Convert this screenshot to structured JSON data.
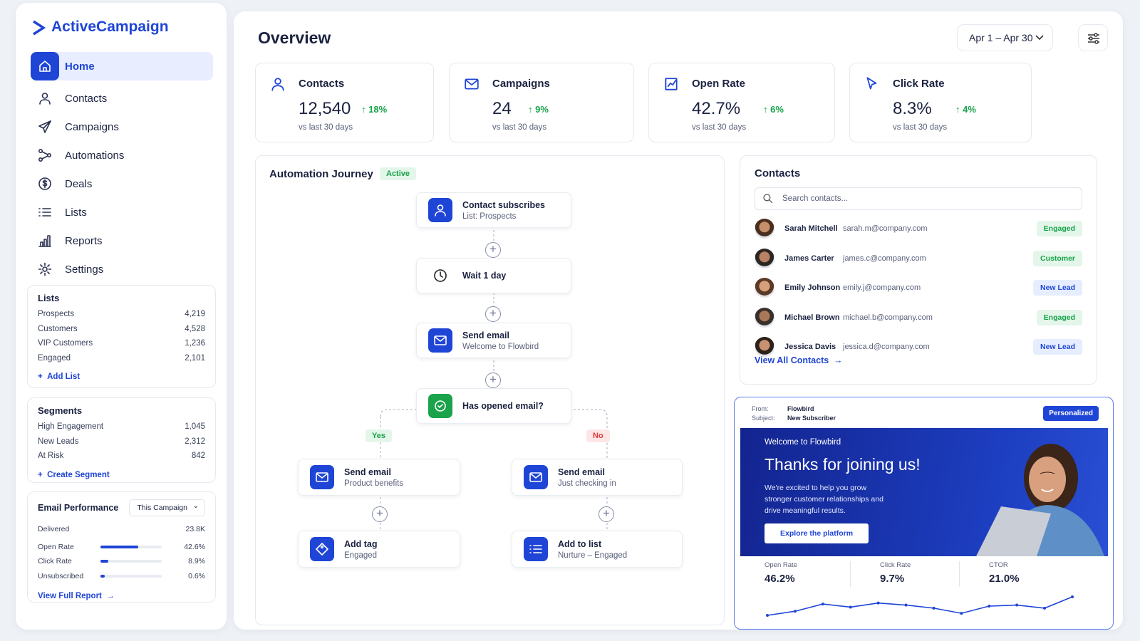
{
  "sidebar": {
    "brand": "ActiveCampaign",
    "nav": [
      "Home",
      "Contacts",
      "Campaigns",
      "Automations",
      "Deals",
      "Lists",
      "Reports",
      "Settings"
    ],
    "lists": {
      "title": "Lists",
      "items": [
        {
          "name": "Prospects",
          "count": "4,219"
        },
        {
          "name": "Customers",
          "count": "4,528"
        },
        {
          "name": "VIP Customers",
          "count": "1,236"
        },
        {
          "name": "Engaged",
          "count": "2,101"
        }
      ],
      "action": "Add List"
    },
    "segments": {
      "title": "Segments",
      "items": [
        {
          "name": "High Engagement",
          "count": "1,045"
        },
        {
          "name": "New Leads",
          "count": "2,312"
        },
        {
          "name": "At Risk",
          "count": "842"
        }
      ],
      "action": "Create Segment"
    },
    "email_performance": {
      "title": "Email Performance",
      "filter": "This Campaign",
      "delivered": {
        "label": "Delivered",
        "value": "23.8K"
      },
      "rates": [
        {
          "label": "Open Rate",
          "value": 42.6,
          "value_label": "42.6%"
        },
        {
          "label": "Click Rate",
          "value": 8.9,
          "value_label": "8.9%"
        },
        {
          "label": "Unsubscribed",
          "value": 0.6,
          "value_label": "0.6%"
        }
      ],
      "link": "View Full Report"
    }
  },
  "header": {
    "title": "Overview",
    "date_range": "Apr 1 – Apr 30"
  },
  "stats": [
    {
      "label": "Contacts",
      "value": "12,540",
      "change": "18%",
      "note": "vs last 30 days"
    },
    {
      "label": "Campaigns",
      "value": "24",
      "change": "9%",
      "note": "vs last 30 days"
    },
    {
      "label": "Open Rate",
      "value": "42.7%",
      "change": "6%",
      "note": "vs last 30 days"
    },
    {
      "label": "Click Rate",
      "value": "8.3%",
      "change": "4%",
      "note": "vs last 30 days"
    }
  ],
  "automation": {
    "title": "Automation Journey",
    "status": "Active",
    "nodes": [
      {
        "title": "Contact subscribes",
        "subtitle": "List: Prospects"
      },
      {
        "title": "Wait 1 day"
      },
      {
        "title": "Send email",
        "subtitle": "Welcome to Flowbird"
      },
      {
        "title": "Has opened email?"
      }
    ],
    "branches": [
      {
        "label": "Yes",
        "nodes": [
          {
            "title": "Send email",
            "subtitle": "Product benefits"
          },
          {
            "title": "Add tag",
            "subtitle": "Engaged"
          }
        ]
      },
      {
        "label": "No",
        "nodes": [
          {
            "title": "Send email",
            "subtitle": "Just checking in"
          },
          {
            "title": "Add to list",
            "subtitle": "Nurture – Engaged"
          }
        ]
      }
    ]
  },
  "contacts": {
    "title": "Contacts",
    "search_placeholder": "Search contacts...",
    "rows": [
      {
        "name": "Sarah Mitchell",
        "email": "sarah.m@company.com",
        "status": "Engaged"
      },
      {
        "name": "James Carter",
        "email": "james.c@company.com",
        "status": "Customer"
      },
      {
        "name": "Emily Johnson",
        "email": "emily.j@company.com",
        "status": "New Lead"
      },
      {
        "name": "Michael Brown",
        "email": "michael.b@company.com",
        "status": "Engaged"
      },
      {
        "name": "Jessica Davis",
        "email": "jessica.d@company.com",
        "status": "New Lead"
      }
    ],
    "link": "View All Contacts"
  },
  "email_preview": {
    "from_label": "From:",
    "from": "Flowbird",
    "subject_label": "Subject:",
    "subject": "New Subscriber",
    "badge": "Personalized",
    "eyebrow": "Welcome to Flowbird",
    "headline": "Thanks for joining us!",
    "body": "We're excited to help you grow stronger customer relationships and drive meaningful results.",
    "button": "Explore the platform",
    "metrics": [
      {
        "label": "Open Rate",
        "value": "46.2%"
      },
      {
        "label": "Click Rate",
        "value": "9.7%"
      },
      {
        "label": "CTOR",
        "value": "21.0%"
      }
    ],
    "trend": [
      12,
      16,
      23,
      20,
      24,
      22,
      19,
      14,
      21,
      22,
      19,
      30
    ]
  }
}
